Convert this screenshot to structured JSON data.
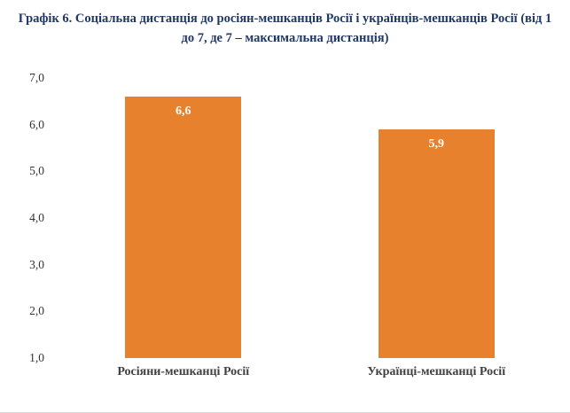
{
  "chart_data": {
    "type": "bar",
    "title": "Графік 6. Соціальна дистанція до росіян-мешканців Росії і українців-мешканців Росії (від 1 до 7, де 7 – максимальна дистанція)",
    "categories": [
      "Росіяни-мешканці Росії",
      "Українці-мешканці Росії"
    ],
    "values": [
      6.6,
      5.9
    ],
    "value_labels": [
      "6,6",
      "5,9"
    ],
    "y_ticks": [
      "7,0",
      "6,0",
      "5,0",
      "4,0",
      "3,0",
      "2,0",
      "1,0"
    ],
    "ylim": [
      1.0,
      7.0
    ],
    "xlabel": "",
    "ylabel": "",
    "grid": false,
    "legend": false,
    "bar_color": "#E8812D",
    "title_color": "#1F3864"
  }
}
